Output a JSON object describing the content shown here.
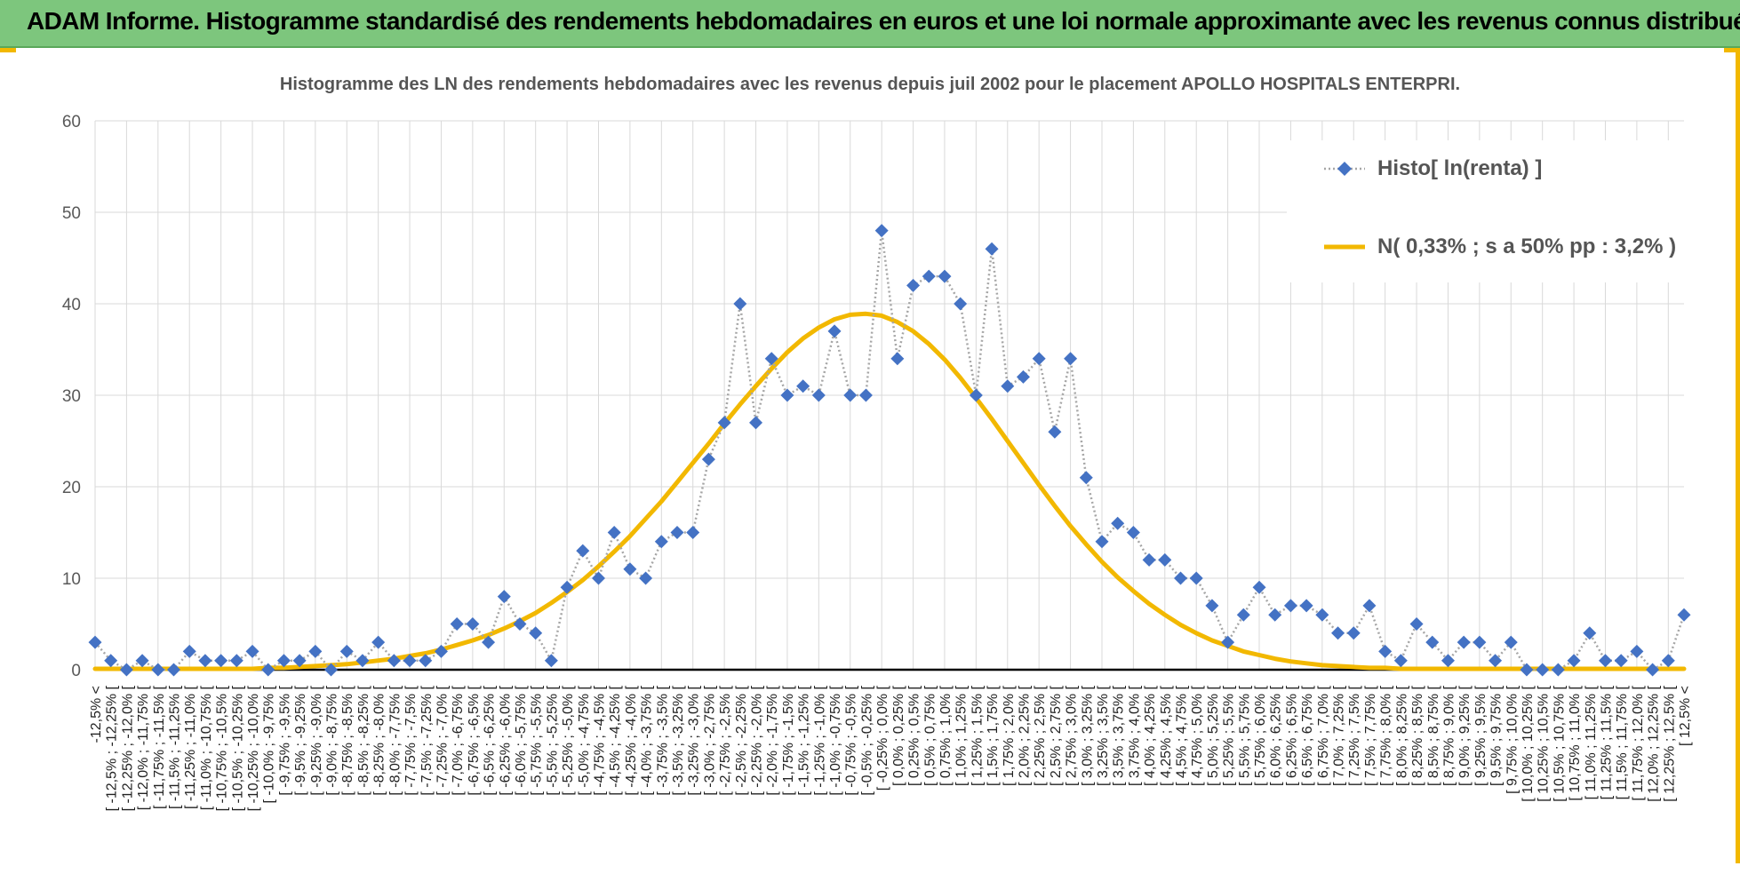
{
  "header": {
    "title": "ADAM Informe. Histogramme standardisé des rendements hebdomadaires en euros et une loi normale approximante avec les revenus connus distribués"
  },
  "colors": {
    "banner": "#7dc67d",
    "accent": "#f2b800",
    "histo_marker": "#4472c4",
    "histo_line": "#a6a6a6",
    "normal_curve": "#f2b800",
    "grid": "#d9d9d9",
    "axis": "#000000"
  },
  "chart_data": {
    "type": "line",
    "title": "Histogramme des LN des rendements hebdomadaires avec les revenus depuis juil 2002 pour le placement APOLLO HOSPITALS ENTERPRI.",
    "xlabel": "",
    "ylabel": "",
    "ylim": [
      0,
      60
    ],
    "yticks": [
      0,
      10,
      20,
      30,
      40,
      50,
      60
    ],
    "grid": true,
    "legend_position": "top-right",
    "categories": [
      "-12,5% <",
      "[ -12,5% ; -12,25% [",
      "[ -12,25% ; -12,0% [",
      "[ -12,0% ; -11,75% [",
      "[ -11,75% ; -11,5% [",
      "[ -11,5% ; -11,25% [",
      "[ -11,25% ; -11,0% [",
      "[ -11,0% ; -10,75% [",
      "[ -10,75% ; -10,5% [",
      "[ -10,5% ; -10,25% [",
      "[ -10,25% ; -10,0% [",
      "[ -10,0% ; -9,75% [",
      "[ -9,75% ; -9,5% [",
      "[ -9,5% ; -9,25% [",
      "[ -9,25% ; -9,0% [",
      "[ -9,0% ; -8,75% [",
      "[ -8,75% ; -8,5% [",
      "[ -8,5% ; -8,25% [",
      "[ -8,25% ; -8,0% [",
      "[ -8,0% ; -7,75% [",
      "[ -7,75% ; -7,5% [",
      "[ -7,5% ; -7,25% [",
      "[ -7,25% ; -7,0% [",
      "[ -7,0% ; -6,75% [",
      "[ -6,75% ; -6,5% [",
      "[ -6,5% ; -6,25% [",
      "[ -6,25% ; -6,0% [",
      "[ -6,0% ; -5,75% [",
      "[ -5,75% ; -5,5% [",
      "[ -5,5% ; -5,25% [",
      "[ -5,25% ; -5,0% [",
      "[ -5,0% ; -4,75% [",
      "[ -4,75% ; -4,5% [",
      "[ -4,5% ; -4,25% [",
      "[ -4,25% ; -4,0% [",
      "[ -4,0% ; -3,75% [",
      "[ -3,75% ; -3,5% [",
      "[ -3,5% ; -3,25% [",
      "[ -3,25% ; -3,0% [",
      "[ -3,0% ; -2,75% [",
      "[ -2,75% ; -2,5% [",
      "[ -2,5% ; -2,25% [",
      "[ -2,25% ; -2,0% [",
      "[ -2,0% ; -1,75% [",
      "[ -1,75% ; -1,5% [",
      "[ -1,5% ; -1,25% [",
      "[ -1,25% ; -1,0% [",
      "[ -1,0% ; -0,75% [",
      "[ -0,75% ; -0,5% [",
      "[ -0,5% ; -0,25% [",
      "[ -0,25% ; 0,0% [",
      "[ 0,0% ; 0,25% [",
      "[ 0,25% ; 0,5% [",
      "[ 0,5% ; 0,75% [",
      "[ 0,75% ; 1,0% [",
      "[ 1,0% ; 1,25% [",
      "[ 1,25% ; 1,5% [",
      "[ 1,5% ; 1,75% [",
      "[ 1,75% ; 2,0% [",
      "[ 2,0% ; 2,25% [",
      "[ 2,25% ; 2,5% [",
      "[ 2,5% ; 2,75% [",
      "[ 2,75% ; 3,0% [",
      "[ 3,0% ; 3,25% [",
      "[ 3,25% ; 3,5% [",
      "[ 3,5% ; 3,75% [",
      "[ 3,75% ; 4,0% [",
      "[ 4,0% ; 4,25% [",
      "[ 4,25% ; 4,5% [",
      "[ 4,5% ; 4,75% [",
      "[ 4,75% ; 5,0% [",
      "[ 5,0% ; 5,25% [",
      "[ 5,25% ; 5,5% [",
      "[ 5,5% ; 5,75% [",
      "[ 5,75% ; 6,0% [",
      "[ 6,0% ; 6,25% [",
      "[ 6,25% ; 6,5% [",
      "[ 6,5% ; 6,75% [",
      "[ 6,75% ; 7,0% [",
      "[ 7,0% ; 7,25% [",
      "[ 7,25% ; 7,5% [",
      "[ 7,5% ; 7,75% [",
      "[ 7,75% ; 8,0% [",
      "[ 8,0% ; 8,25% [",
      "[ 8,25% ; 8,5% [",
      "[ 8,5% ; 8,75% [",
      "[ 8,75% ; 9,0% [",
      "[ 9,0% ; 9,25% [",
      "[ 9,25% ; 9,5% [",
      "[ 9,5% ; 9,75% [",
      "[ 9,75% ; 10,0% [",
      "[ 10,0% ; 10,25% [",
      "[ 10,25% ; 10,5% [",
      "[ 10,5% ; 10,75% [",
      "[ 10,75% ; 11,0% [",
      "[ 11,0% ; 11,25% [",
      "[ 11,25% ; 11,5% [",
      "[ 11,5% ; 11,75% [",
      "[ 11,75% ; 12,0% [",
      "[ 12,0% ; 12,25% [",
      "[ 12,25% ; 12,5% [",
      "[ 12,5% <"
    ],
    "series": [
      {
        "name": "Histo[ ln(renta) ]",
        "style": "dotted-line-diamond-markers",
        "values": [
          3,
          1,
          0,
          1,
          0,
          0,
          2,
          1,
          1,
          1,
          2,
          0,
          1,
          1,
          2,
          0,
          2,
          1,
          3,
          1,
          1,
          1,
          2,
          5,
          5,
          3,
          8,
          5,
          4,
          1,
          9,
          13,
          10,
          15,
          11,
          10,
          14,
          15,
          15,
          23,
          27,
          40,
          27,
          34,
          30,
          31,
          30,
          37,
          30,
          30,
          48,
          34,
          42,
          43,
          43,
          40,
          30,
          46,
          31,
          32,
          34,
          26,
          34,
          21,
          14,
          16,
          15,
          12,
          12,
          10,
          10,
          7,
          3,
          6,
          9,
          6,
          7,
          7,
          6,
          4,
          4,
          7,
          2,
          1,
          5,
          3,
          1,
          3,
          3,
          1,
          3,
          0,
          0,
          0,
          1,
          4,
          1,
          1,
          2,
          0,
          1,
          6
        ]
      },
      {
        "name": "N( 0,33% ; s a 50% pp : 3,2% )",
        "style": "smooth-line",
        "values": [
          0.1,
          0.1,
          0.1,
          0.1,
          0.1,
          0.1,
          0.1,
          0.1,
          0.1,
          0.1,
          0.1,
          0.2,
          0.2,
          0.3,
          0.4,
          0.5,
          0.6,
          0.8,
          1.0,
          1.2,
          1.5,
          1.8,
          2.2,
          2.7,
          3.2,
          3.8,
          4.5,
          5.3,
          6.2,
          7.3,
          8.5,
          9.8,
          11.3,
          12.9,
          14.6,
          16.5,
          18.4,
          20.5,
          22.6,
          24.7,
          26.9,
          29.0,
          31.0,
          32.9,
          34.7,
          36.2,
          37.4,
          38.3,
          38.8,
          38.9,
          38.7,
          38.0,
          37.0,
          35.6,
          33.9,
          31.9,
          29.7,
          27.4,
          25.0,
          22.6,
          20.2,
          17.9,
          15.7,
          13.7,
          11.8,
          10.1,
          8.6,
          7.2,
          6.0,
          4.9,
          4.0,
          3.2,
          2.6,
          2.0,
          1.6,
          1.2,
          0.9,
          0.7,
          0.5,
          0.4,
          0.3,
          0.2,
          0.2,
          0.1,
          0.1,
          0.1,
          0.1,
          0.1,
          0.1,
          0.1,
          0.1,
          0.1,
          0.1,
          0.1,
          0.1,
          0.1,
          0.1,
          0.1,
          0.1,
          0.1,
          0.1,
          0.1
        ]
      }
    ]
  }
}
